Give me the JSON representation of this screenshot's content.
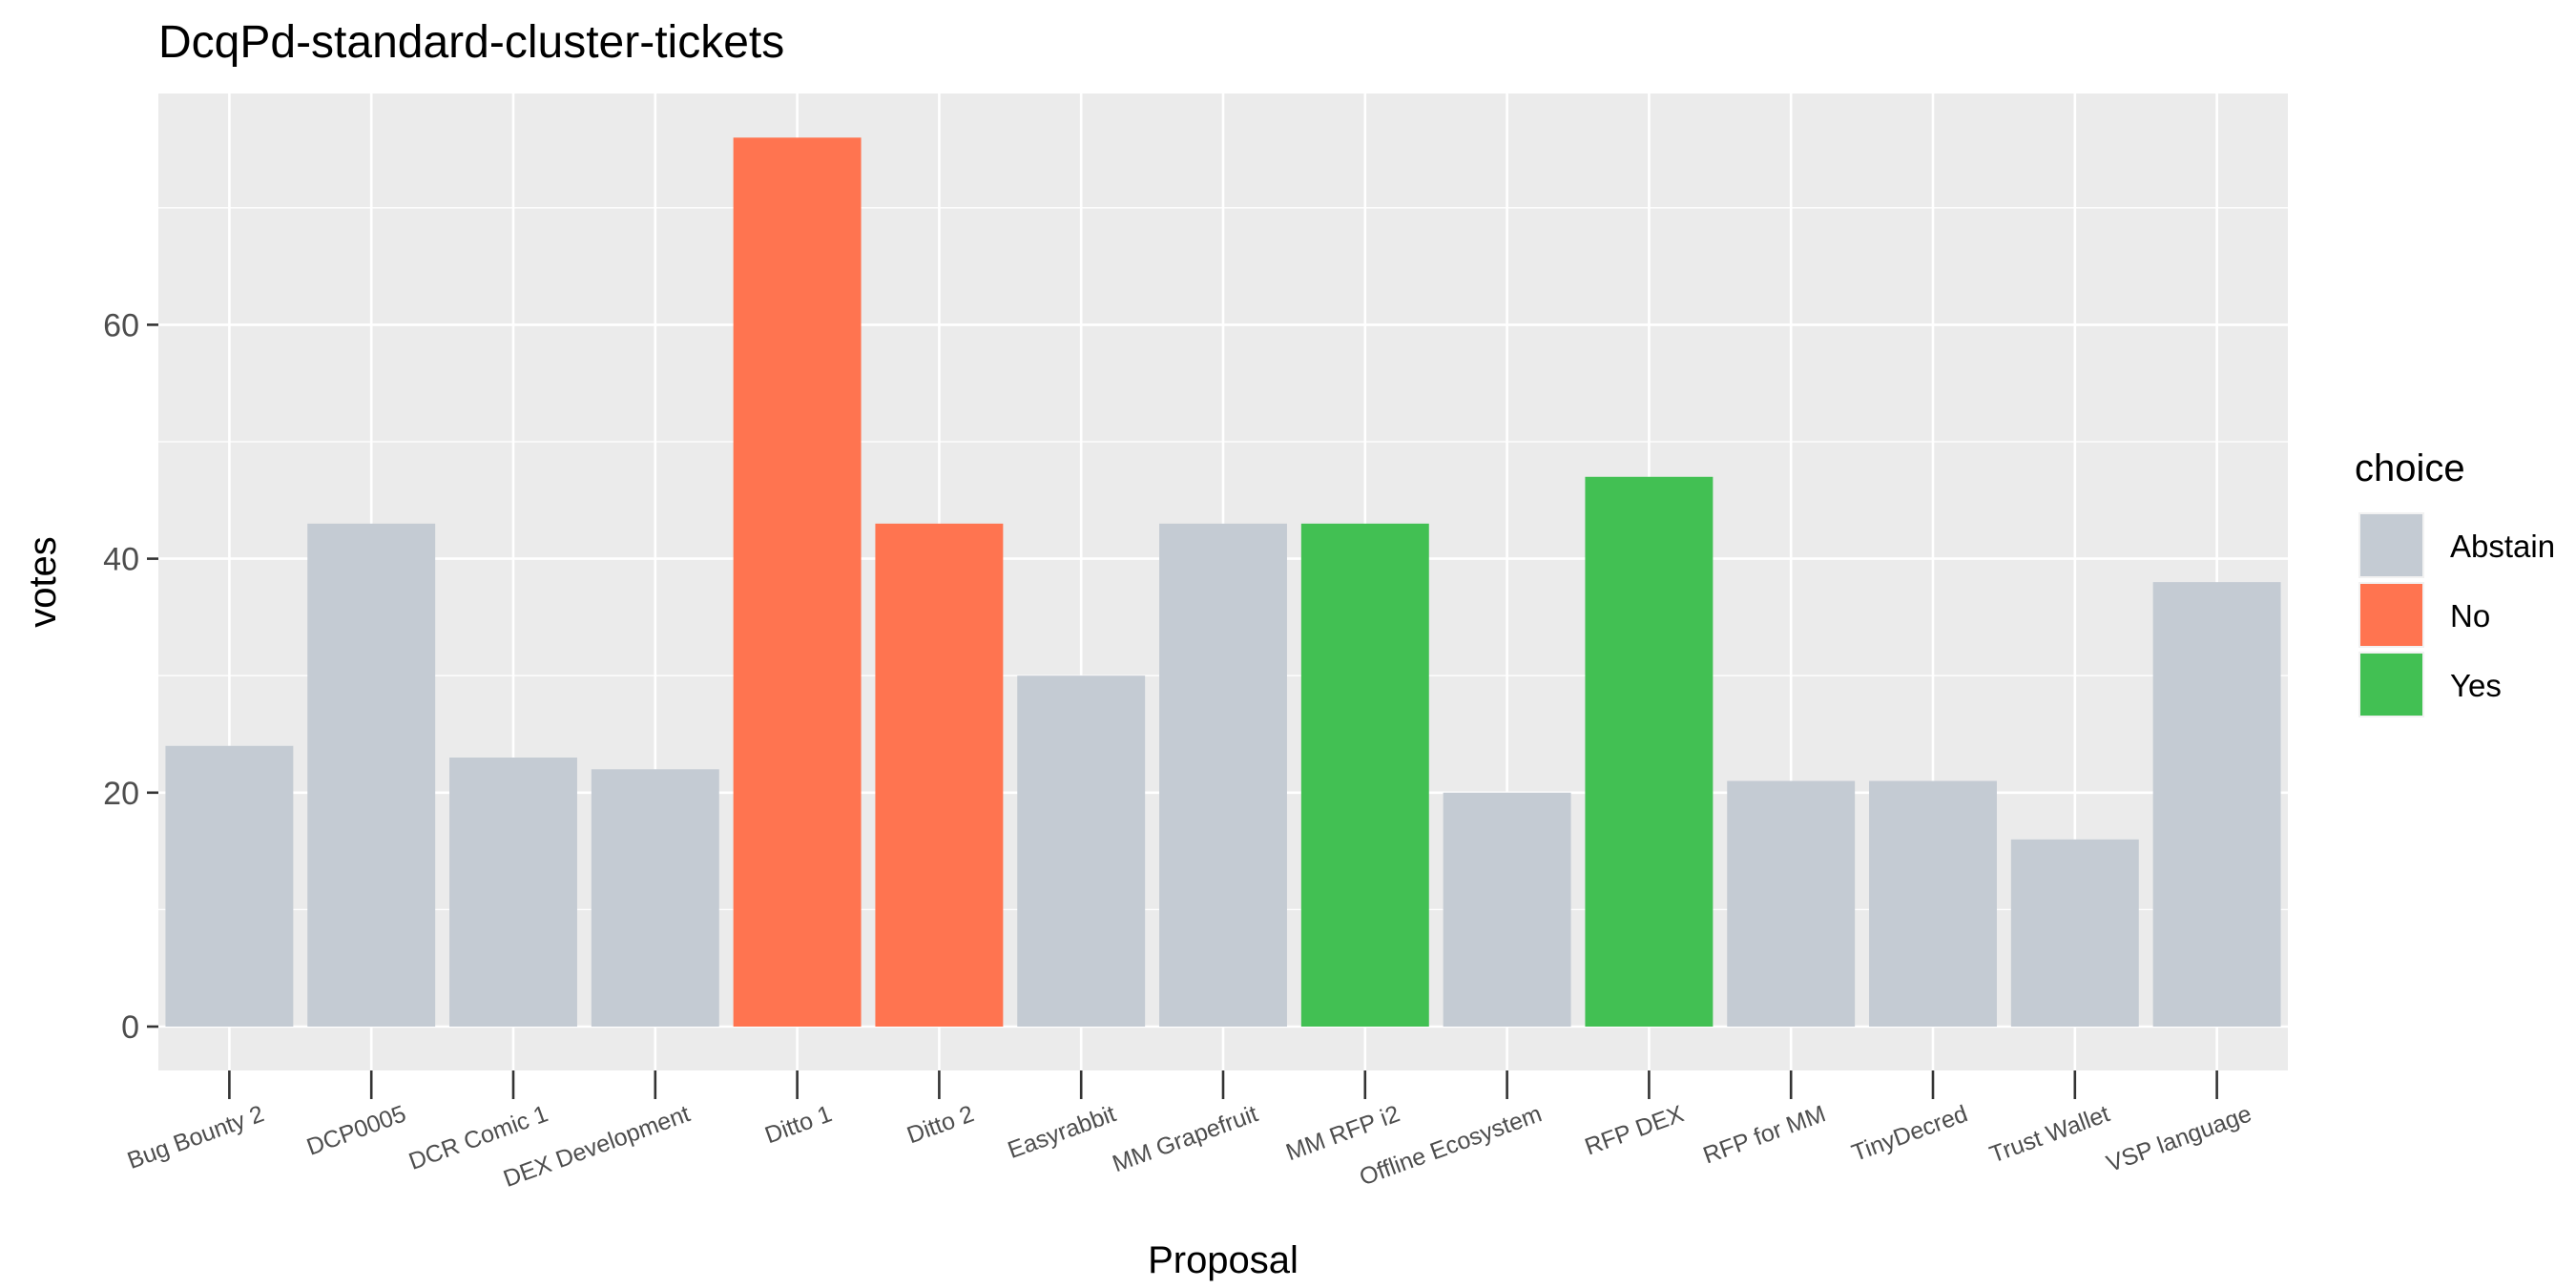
{
  "chart_data": {
    "type": "bar",
    "title": "DcqPd-standard-cluster-tickets",
    "xlabel": "Proposal",
    "ylabel": "votes",
    "ylim": [
      0,
      80
    ],
    "y_ticks": [
      0,
      20,
      40,
      60
    ],
    "grid": true,
    "legend_position": "right",
    "legend_title": "choice",
    "legend": [
      {
        "name": "Abstain",
        "color": "#c4cbd3"
      },
      {
        "name": "No",
        "color": "#ff7450"
      },
      {
        "name": "Yes",
        "color": "#42c053"
      }
    ],
    "categories": [
      "Bug Bounty 2",
      "DCP0005",
      "DCR Comic 1",
      "DEX Development",
      "Ditto 1",
      "Ditto 2",
      "Easyrabbit",
      "MM Grapefruit",
      "MM RFP i2",
      "Offline Ecosystem",
      "RFP DEX",
      "RFP for MM",
      "TinyDecred",
      "Trust Wallet",
      "VSP language"
    ],
    "values": [
      24,
      43,
      23,
      22,
      76,
      43,
      30,
      43,
      43,
      20,
      47,
      21,
      21,
      16,
      38
    ],
    "choices": [
      "Abstain",
      "Abstain",
      "Abstain",
      "Abstain",
      "No",
      "No",
      "Abstain",
      "Abstain",
      "Yes",
      "Abstain",
      "Yes",
      "Abstain",
      "Abstain",
      "Abstain",
      "Abstain"
    ]
  }
}
